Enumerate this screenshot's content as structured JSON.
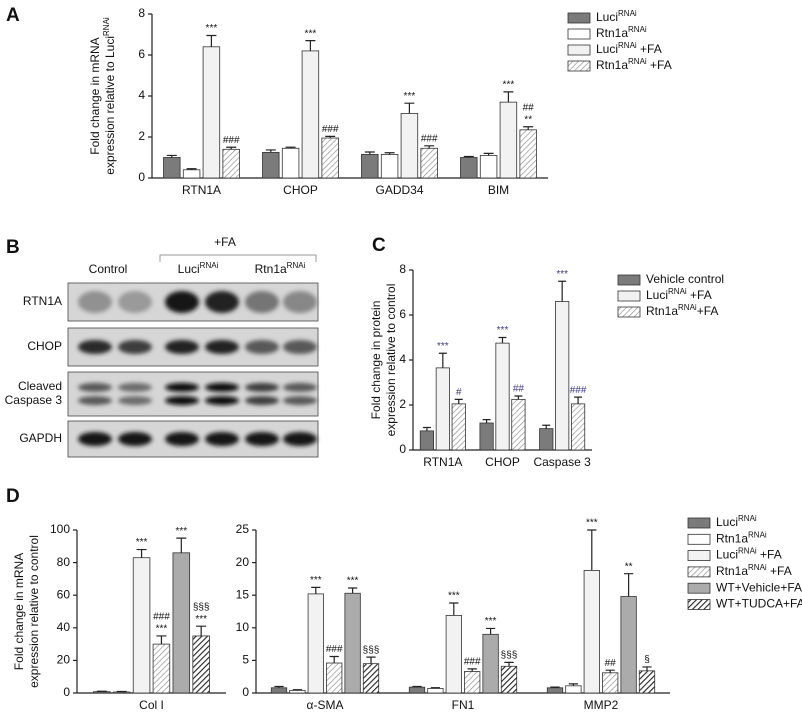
{
  "chart_data": [
    {
      "type": "bar",
      "panel": "A",
      "ylabel": [
        "Fold change in mRNA",
        "expression relative to LuciRNAi"
      ],
      "categories": [
        "RTN1A",
        "CHOP",
        "GADD34",
        "BIM"
      ],
      "ylim": [
        0,
        8
      ],
      "yticks": [
        0,
        2,
        4,
        6,
        8
      ],
      "annotation_color": "#111111",
      "series": [
        {
          "name": "LuciRNAi",
          "color": "#7b7b7b",
          "values": [
            1.0,
            1.25,
            1.15,
            1.0
          ],
          "errors": [
            0.1,
            0.12,
            0.12,
            0.05
          ]
        },
        {
          "name": "Rtn1aRNAi",
          "color": "#ffffff",
          "values": [
            0.4,
            1.45,
            1.15,
            1.1
          ],
          "errors": [
            0.05,
            0.05,
            0.08,
            0.1
          ]
        },
        {
          "name": "LuciRNAi +FA",
          "color": "#f2f2f2",
          "values": [
            6.4,
            6.2,
            3.15,
            3.7
          ],
          "errors": [
            0.55,
            0.5,
            0.5,
            0.5
          ],
          "annotations": [
            [
              "***"
            ],
            [
              "***"
            ],
            [
              "***"
            ],
            [
              "***"
            ]
          ]
        },
        {
          "name": "Rtn1aRNAi +FA",
          "color": "#ffffff",
          "pattern": "hatch",
          "hatch_color": "#8a8a8a",
          "values": [
            1.4,
            1.95,
            1.45,
            2.35
          ],
          "errors": [
            0.1,
            0.08,
            0.12,
            0.15
          ],
          "annotations": [
            [
              "###"
            ],
            [
              "###"
            ],
            [
              "###"
            ],
            [
              "##",
              "**"
            ]
          ]
        }
      ]
    },
    {
      "type": "bar",
      "panel": "C",
      "ylabel": [
        "Fold change in protein",
        "expression relative to control"
      ],
      "categories": [
        "RTN1A",
        "CHOP",
        "Caspase 3"
      ],
      "ylim": [
        0,
        8
      ],
      "yticks": [
        0,
        2,
        4,
        6,
        8
      ],
      "annotation_color": "#3b3b7e",
      "series": [
        {
          "name": "Vehicle control",
          "color": "#7b7b7b",
          "values": [
            0.85,
            1.2,
            0.95
          ],
          "errors": [
            0.15,
            0.15,
            0.15
          ]
        },
        {
          "name": "LuciRNAi +FA",
          "color": "#f2f2f2",
          "values": [
            3.65,
            4.75,
            6.6
          ],
          "errors": [
            0.65,
            0.25,
            0.9
          ],
          "annotations": [
            [
              "***"
            ],
            [
              "***"
            ],
            [
              "***"
            ]
          ]
        },
        {
          "name": "Rtn1aRNAi+FA",
          "color": "#ffffff",
          "pattern": "hatch",
          "hatch_color": "#8a8a8a",
          "values": [
            2.05,
            2.25,
            2.05
          ],
          "errors": [
            0.2,
            0.15,
            0.3
          ],
          "annotations": [
            [
              "#"
            ],
            [
              "##"
            ],
            [
              "###"
            ]
          ]
        }
      ]
    },
    {
      "type": "bar",
      "panel": "D",
      "ylabel": [
        "Fold change in mRNA",
        "expression relative to control"
      ],
      "categories": [
        "Col I"
      ],
      "ylim": [
        0,
        100
      ],
      "yticks": [
        0,
        20,
        40,
        60,
        80,
        100
      ],
      "annotation_color": "#111111",
      "series": [
        {
          "color": "#7b7b7b",
          "values": [
            0.8
          ],
          "errors": [
            0.3
          ]
        },
        {
          "color": "#ffffff",
          "values": [
            0.6
          ],
          "errors": [
            0.3
          ]
        },
        {
          "color": "#f2f2f2",
          "values": [
            83
          ],
          "errors": [
            5
          ],
          "annotations": [
            [
              "***"
            ]
          ]
        },
        {
          "color": "#ffffff",
          "pattern": "hatch",
          "hatch_color": "#8a8a8a",
          "values": [
            30
          ],
          "errors": [
            5
          ],
          "annotations": [
            [
              "###",
              "***"
            ]
          ]
        },
        {
          "color": "#ababab",
          "values": [
            86
          ],
          "errors": [
            9
          ],
          "annotations": [
            [
              "***"
            ]
          ]
        },
        {
          "color": "#ffffff",
          "pattern": "hatch",
          "hatch_color": "#222222",
          "values": [
            35
          ],
          "errors": [
            6
          ],
          "annotations": [
            [
              "§§§",
              "***"
            ]
          ]
        }
      ]
    },
    {
      "type": "bar",
      "categories": [
        "α-SMA",
        "FN1",
        "MMP2"
      ],
      "ylim": [
        0,
        25
      ],
      "yticks": [
        0,
        5,
        10,
        15,
        20,
        25
      ],
      "annotation_color": "#111111",
      "series": [
        {
          "name": "LuciRNAi",
          "color": "#7b7b7b",
          "values": [
            0.8,
            0.9,
            0.8
          ],
          "errors": [
            0.2,
            0.1,
            0.1
          ]
        },
        {
          "name": "Rtn1aRNAi",
          "color": "#ffffff",
          "values": [
            0.4,
            0.7,
            1.1
          ],
          "errors": [
            0.1,
            0.1,
            0.3
          ]
        },
        {
          "name": "LuciRNAi +FA",
          "color": "#f2f2f2",
          "values": [
            15.2,
            11.9,
            18.8
          ],
          "errors": [
            1,
            1.9,
            6.2
          ],
          "annotations": [
            [
              "***"
            ],
            [
              "***"
            ],
            [
              "***"
            ]
          ]
        },
        {
          "name": "Rtn1aRNAi +FA",
          "color": "#ffffff",
          "pattern": "hatch",
          "hatch_color": "#8a8a8a",
          "values": [
            4.6,
            3.3,
            3.1
          ],
          "errors": [
            1,
            0.4,
            0.4
          ],
          "annotations": [
            [
              "###"
            ],
            [
              "###"
            ],
            [
              "##"
            ]
          ]
        },
        {
          "name": "WT+Vehicle+FA",
          "color": "#ababab",
          "values": [
            15.3,
            9,
            14.8
          ],
          "errors": [
            0.8,
            0.9,
            3.5
          ],
          "annotations": [
            [
              "***"
            ],
            [
              "***"
            ],
            [
              "**"
            ]
          ]
        },
        {
          "name": "WT+TUDCA+FA",
          "color": "#ffffff",
          "pattern": "hatch",
          "hatch_color": "#222222",
          "values": [
            4.5,
            4.1,
            3.4
          ],
          "errors": [
            1,
            0.6,
            0.6
          ],
          "annotations": [
            [
              "§§§"
            ],
            [
              "§§§"
            ],
            [
              "§"
            ]
          ]
        }
      ]
    }
  ],
  "blot": {
    "panel": "B",
    "treatment": "+FA",
    "groups": [
      "Control",
      "LuciRNAi",
      "Rtn1aRNAi"
    ],
    "rows": [
      [
        "RTN1A"
      ],
      [
        "CHOP"
      ],
      [
        "Cleaved",
        "Caspase 3"
      ],
      [
        "GAPDH"
      ]
    ]
  }
}
